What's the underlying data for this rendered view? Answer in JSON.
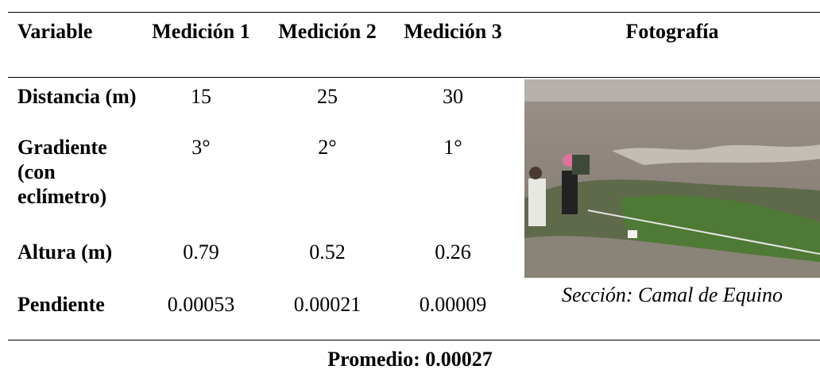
{
  "table": {
    "header": [
      "Variable",
      "Medición 1",
      "Medición 2",
      "Medición 3",
      "Fotografía"
    ],
    "rows": [
      [
        "Distancia (m)",
        "15",
        "25",
        "30"
      ],
      [
        "Gradiente (con eclímetro)",
        "3°",
        "2°",
        "1°"
      ],
      [
        "Altura (m)",
        "0.79",
        "0.52",
        "0.26"
      ],
      [
        "Pendiente",
        "0.00053",
        "0.00021",
        "0.00009"
      ]
    ]
  },
  "photo": {
    "caption": "Sección: Camal de Equino"
  },
  "footer": {
    "average": "Promedio: 0.00027"
  }
}
